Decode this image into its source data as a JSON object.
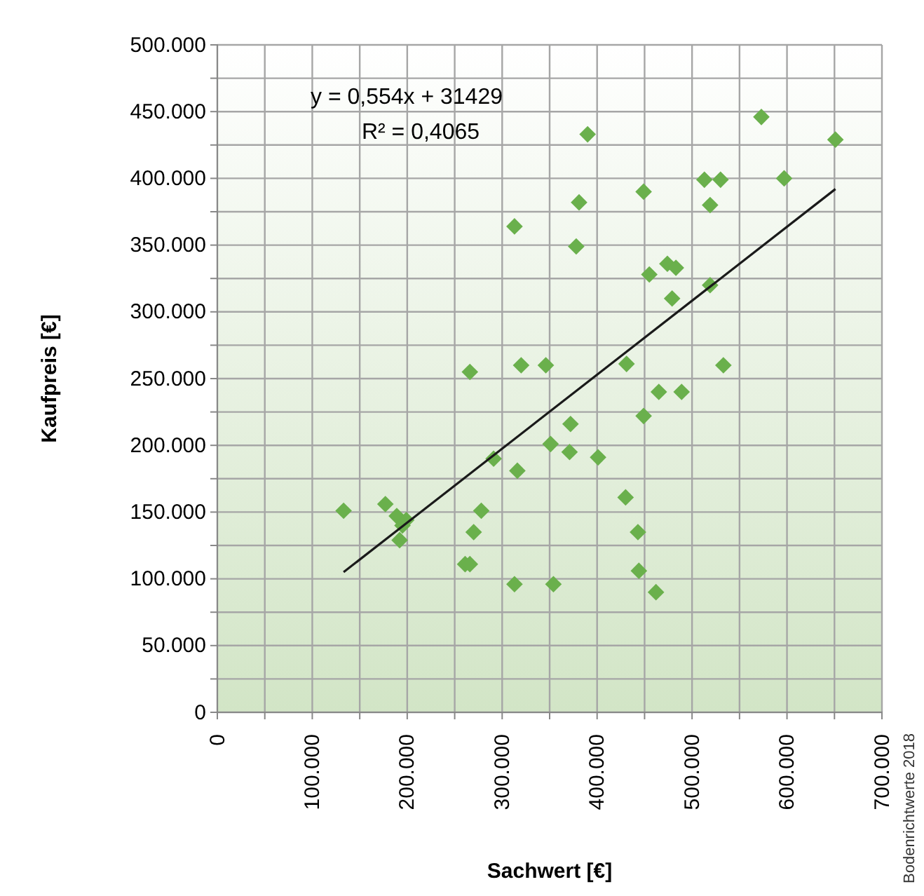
{
  "chart_data": {
    "type": "scatter",
    "xlabel": "Sachwert [€]",
    "ylabel": "Kaufpreis [€]",
    "marker": "diamond",
    "grid": true,
    "xlim": [
      0,
      700000
    ],
    "ylim": [
      0,
      500000
    ],
    "xticks": [
      {
        "value": 0,
        "label": "0"
      },
      {
        "value": 50000,
        "label": null
      },
      {
        "value": 100000,
        "label": "100.000"
      },
      {
        "value": 150000,
        "label": null
      },
      {
        "value": 200000,
        "label": "200.000"
      },
      {
        "value": 250000,
        "label": null
      },
      {
        "value": 300000,
        "label": "300.000"
      },
      {
        "value": 350000,
        "label": null
      },
      {
        "value": 400000,
        "label": "400.000"
      },
      {
        "value": 450000,
        "label": null
      },
      {
        "value": 500000,
        "label": "500.000"
      },
      {
        "value": 550000,
        "label": null
      },
      {
        "value": 600000,
        "label": "600.000"
      },
      {
        "value": 650000,
        "label": null
      },
      {
        "value": 700000,
        "label": "700.000"
      }
    ],
    "yticks": [
      {
        "value": 0,
        "label": "0"
      },
      {
        "value": 25000,
        "label": null
      },
      {
        "value": 50000,
        "label": "50.000"
      },
      {
        "value": 75000,
        "label": null
      },
      {
        "value": 100000,
        "label": "100.000"
      },
      {
        "value": 125000,
        "label": null
      },
      {
        "value": 150000,
        "label": "150.000"
      },
      {
        "value": 175000,
        "label": null
      },
      {
        "value": 200000,
        "label": "200.000"
      },
      {
        "value": 225000,
        "label": null
      },
      {
        "value": 250000,
        "label": "250.000"
      },
      {
        "value": 275000,
        "label": null
      },
      {
        "value": 300000,
        "label": "300.000"
      },
      {
        "value": 325000,
        "label": null
      },
      {
        "value": 350000,
        "label": "350.000"
      },
      {
        "value": 375000,
        "label": null
      },
      {
        "value": 400000,
        "label": "400.000"
      },
      {
        "value": 425000,
        "label": null
      },
      {
        "value": 450000,
        "label": "450.000"
      },
      {
        "value": 475000,
        "label": null
      },
      {
        "value": 500000,
        "label": "500.000"
      }
    ],
    "annotations": [
      "y = 0,554x + 31429",
      "R² = 0,4065",
      "Bodenrichtwerte 2018"
    ],
    "series": [
      {
        "color": "#6ab04c",
        "x": [
          133000,
          177000,
          189000,
          199000,
          195000,
          192000,
          261000,
          266000,
          270000,
          278000,
          291000,
          316000,
          313000,
          351000,
          354000,
          313000,
          266000,
          320000,
          346000,
          390000,
          573000,
          651000,
          381000,
          449000,
          513000,
          530000,
          597000,
          519000,
          378000,
          455000,
          474000,
          483000,
          479000,
          519000,
          431000,
          533000,
          465000,
          489000,
          372000,
          449000,
          371000,
          401000,
          430000,
          443000,
          444000,
          462000
        ],
        "values": [
          151000,
          156000,
          147000,
          144000,
          140000,
          129000,
          111000,
          111000,
          135000,
          151000,
          190000,
          181000,
          96000,
          201000,
          96000,
          364000,
          255000,
          260000,
          260000,
          433000,
          446000,
          429000,
          382000,
          390000,
          399000,
          399000,
          400000,
          380000,
          349000,
          328000,
          336000,
          333000,
          310000,
          320000,
          261000,
          260000,
          240000,
          240000,
          216000,
          222000,
          195000,
          191000,
          161000,
          135000,
          106000,
          90000
        ]
      },
      {
        "type": "line",
        "color": "#1a1a1a",
        "marker": "none",
        "x": [
          133000,
          651000
        ],
        "values": [
          105000,
          392000
        ]
      }
    ]
  }
}
